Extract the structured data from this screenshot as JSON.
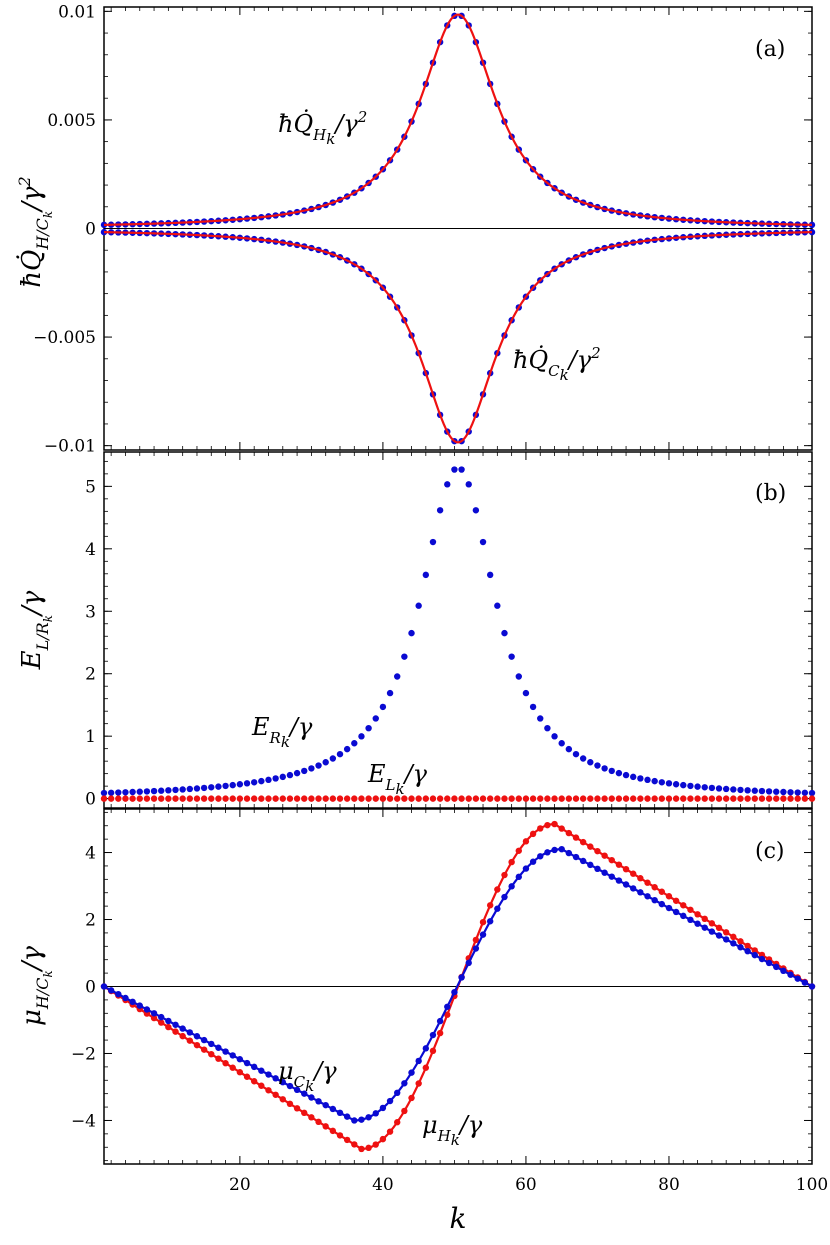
{
  "colors": {
    "red": "#ee1111",
    "blue": "#0a0ad2",
    "axis": "#000000"
  },
  "x_axis": {
    "label": "k",
    "range": [
      1,
      100
    ],
    "ticks": [
      20,
      40,
      60,
      80,
      100
    ],
    "tick_labels": [
      "20",
      "40",
      "60",
      "80",
      "100"
    ]
  },
  "chart_data": [
    {
      "type": "scatter",
      "panel_label": "(a)",
      "ylabel_parts": {
        "main": "ħQ̇",
        "sub": "H/C",
        "subsub": "k",
        "tail": "/γ",
        "sup": "2"
      },
      "ylim": [
        -0.0102,
        0.0102
      ],
      "yticks": [
        -0.01,
        -0.005,
        0,
        0.005,
        0.01
      ],
      "ytick_labels": [
        "−0.01",
        "−0.005",
        "0",
        "0.005",
        "0.01"
      ],
      "zero_line": true,
      "model": {
        "kind": "lorentzian",
        "amplitude": 0.00985,
        "center": 50.5,
        "width": 6.5
      },
      "series": [
        {
          "name": "Q_H dots",
          "color": "blue",
          "style": "dots",
          "sign": 1
        },
        {
          "name": "Q_H line",
          "color": "red",
          "style": "line",
          "sign": 1
        },
        {
          "name": "Q_C dots",
          "color": "blue",
          "style": "dots",
          "sign": -1
        },
        {
          "name": "Q_C line",
          "color": "red",
          "style": "line",
          "sign": -1
        }
      ],
      "annotations": [
        {
          "main": "ħQ̇",
          "sub": "H",
          "subsub": "k",
          "tail": "/γ",
          "sup": "2"
        },
        {
          "main": "ħQ̇",
          "sub": "C",
          "subsub": "k",
          "tail": "/γ",
          "sup": "2"
        }
      ]
    },
    {
      "type": "scatter",
      "panel_label": "(b)",
      "ylabel_parts": {
        "main": "E",
        "sub": "L/R",
        "subsub": "k",
        "tail": "/γ",
        "sup": ""
      },
      "ylim": [
        -0.15,
        5.55
      ],
      "yticks": [
        0,
        1,
        2,
        3,
        4,
        5
      ],
      "ytick_labels": [
        "0",
        "1",
        "2",
        "3",
        "4",
        "5"
      ],
      "zero_line": false,
      "model": {
        "kind": "lorentzian",
        "amplitude": 5.3,
        "center": 50.5,
        "width": 6.5
      },
      "series": [
        {
          "name": "E_R",
          "color": "blue",
          "style": "dots",
          "sign": 1
        },
        {
          "name": "E_L",
          "color": "red",
          "style": "dots",
          "sign": 0,
          "value": 0
        }
      ],
      "annotations": [
        {
          "main": "E",
          "sub": "R",
          "subsub": "k",
          "tail": "/γ",
          "sup": ""
        },
        {
          "main": "E",
          "sub": "L",
          "subsub": "k",
          "tail": "/γ",
          "sup": ""
        }
      ]
    },
    {
      "type": "scatter",
      "panel_label": "(c)",
      "ylabel_parts": {
        "main": "μ",
        "sub": "H/C",
        "subsub": "k",
        "tail": "/γ",
        "sup": ""
      },
      "ylim": [
        -5.3,
        5.3
      ],
      "yticks": [
        -4,
        -2,
        0,
        2,
        4
      ],
      "ytick_labels": [
        "−4",
        "−2",
        "0",
        "2",
        "4"
      ],
      "zero_line": true,
      "model": {
        "kind": "chemical-potential"
      },
      "series": [
        {
          "name": "mu_H",
          "color": "red",
          "style": "line+dots",
          "min": -4.85,
          "max": 4.85,
          "kmin": 37,
          "kmax": 64
        },
        {
          "name": "mu_C",
          "color": "blue",
          "style": "line+dots",
          "min": -4.0,
          "max": 4.1,
          "kmin": 36,
          "kmax": 65
        }
      ],
      "annotations": [
        {
          "main": "μ",
          "sub": "C",
          "subsub": "k",
          "tail": "/γ",
          "sup": ""
        },
        {
          "main": "μ",
          "sub": "H",
          "subsub": "k",
          "tail": "/γ",
          "sup": ""
        }
      ]
    }
  ]
}
